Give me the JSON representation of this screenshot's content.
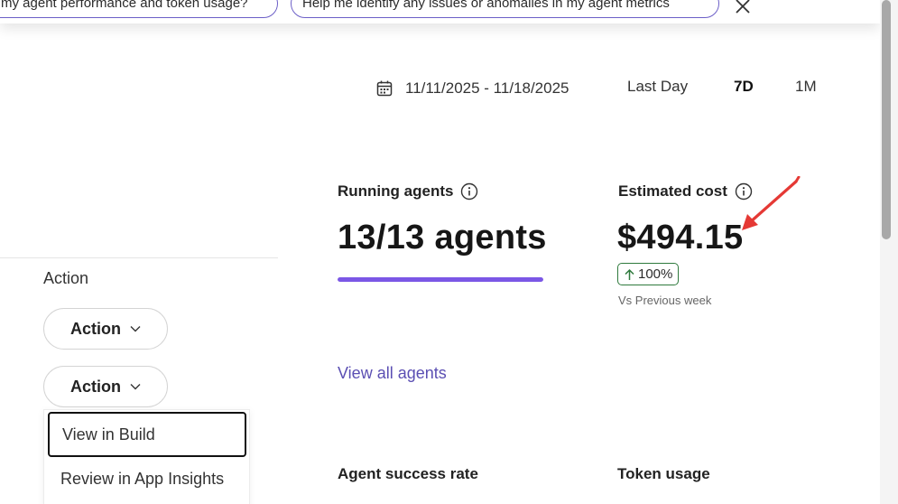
{
  "suggestions": [
    {
      "label": "my agent performance and token usage?"
    },
    {
      "label": "Help me identify any issues or anomalies in my agent metrics"
    }
  ],
  "filters": {
    "date_range": "11/11/2025 - 11/18/2025",
    "ranges": [
      "Last Day",
      "7D",
      "1M"
    ],
    "selected": "7D"
  },
  "metrics": {
    "running_agents": {
      "label": "Running agents",
      "value": "13/13 agents",
      "progress_fraction": 1.0,
      "bar_color": "#7b57e6"
    },
    "estimated_cost": {
      "label": "Estimated cost",
      "value": "$494.15",
      "delta": "100%",
      "delta_color": "#2f7a3d",
      "comparison": "Vs Previous week"
    }
  },
  "links": {
    "view_all_agents": "View all agents"
  },
  "sections": {
    "agent_success_rate": "Agent success rate",
    "token_usage": "Token usage"
  },
  "actions": {
    "heading": "Action",
    "buttons": [
      "Action",
      "Action"
    ],
    "menu": [
      "View in Build",
      "Review in App Insights"
    ]
  },
  "icons": {
    "calendar": "calendar-icon",
    "info": "info-icon",
    "close": "close-icon",
    "chevron": "chevron-down-icon",
    "arrow_up": "arrow-up-icon"
  },
  "colors": {
    "accent": "#5b4fb3",
    "chip_border": "#6c5fc7",
    "annotation": "#e53935"
  }
}
